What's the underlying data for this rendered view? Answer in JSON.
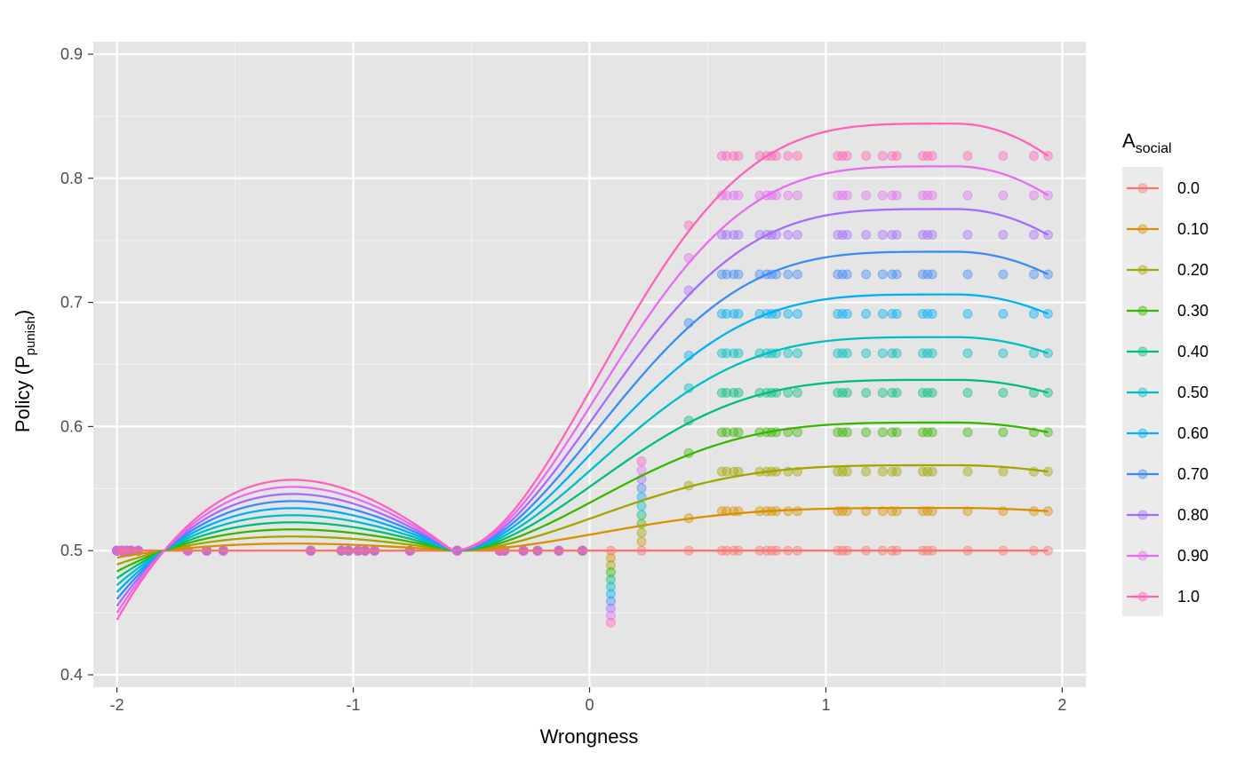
{
  "chart_data": {
    "type": "line",
    "title": "",
    "xlabel": "Wrongness",
    "ylabel": {
      "main": "Policy (P",
      "sub": "punish",
      "close": ")"
    },
    "xlim": [
      -2.1,
      2.1
    ],
    "ylim": [
      0.39,
      0.91
    ],
    "x_ticks": [
      -2,
      -1,
      0,
      1,
      2
    ],
    "x_tick_labels": [
      "-2",
      "-1",
      "0",
      "1",
      "2"
    ],
    "y_ticks": [
      0.4,
      0.5,
      0.6,
      0.7,
      0.8,
      0.9
    ],
    "y_tick_labels": [
      "0.4",
      "0.5",
      "0.6",
      "0.7",
      "0.8",
      "0.9"
    ],
    "grid": true,
    "panel_background": "#e5e5e5",
    "legend": {
      "placement": "right",
      "title_main": "A",
      "title_sub": "social"
    },
    "curve_model": {
      "description": "cubic in Wrongness, scaled by A",
      "x_range": [
        -2,
        1.94
      ],
      "roots": [
        -1.8,
        -0.58
      ],
      "k_lower": 0.0553
    },
    "series": [
      {
        "name": "0.0",
        "a": 0.0,
        "color": "#F8766D"
      },
      {
        "name": "0.10",
        "a": 0.1,
        "color": "#D89000"
      },
      {
        "name": "0.20",
        "a": 0.2,
        "color": "#A3A500"
      },
      {
        "name": "0.30",
        "a": 0.3,
        "color": "#39B600"
      },
      {
        "name": "0.40",
        "a": 0.4,
        "color": "#00BF7D"
      },
      {
        "name": "0.50",
        "a": 0.5,
        "color": "#00BFC4"
      },
      {
        "name": "0.60",
        "a": 0.6,
        "color": "#00B0F6"
      },
      {
        "name": "0.70",
        "a": 0.7,
        "color": "#3B8BF5"
      },
      {
        "name": "0.80",
        "a": 0.8,
        "color": "#A66BFE"
      },
      {
        "name": "0.90",
        "a": 0.9,
        "color": "#E76BF3"
      },
      {
        "name": "1.0",
        "a": 1.0,
        "color": "#FF62BC"
      }
    ],
    "points_x_lower": [
      -2.0,
      -1.98,
      -1.96,
      -1.94,
      -1.91,
      -1.7,
      -1.62,
      -1.55,
      -1.18,
      -1.05,
      -1.02,
      -0.98,
      -0.95,
      -0.91,
      -0.76,
      -0.56,
      -0.38,
      -0.36,
      -0.28,
      -0.22,
      -0.13,
      -0.03
    ],
    "points_x_mid": [
      0.09,
      0.22
    ],
    "points_x_upper": [
      0.42,
      0.56,
      0.58,
      0.61,
      0.63,
      0.72,
      0.75,
      0.77,
      0.79,
      0.84,
      0.88,
      1.05,
      1.07,
      1.09,
      1.17,
      1.24,
      1.28,
      1.3,
      1.41,
      1.43,
      1.45,
      1.6,
      1.75,
      1.88,
      1.94
    ]
  }
}
